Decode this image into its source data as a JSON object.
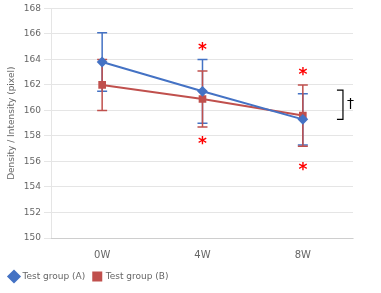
{
  "chart_data": {
    "type": "line",
    "categories": [
      "0W",
      "4W",
      "8W"
    ],
    "series": [
      {
        "name": "Test group (A)",
        "color": "#4472c4",
        "marker": "diamond",
        "values": [
          163.8,
          161.5,
          159.3
        ],
        "errors": [
          2.3,
          2.5,
          2.0
        ]
      },
      {
        "name": "Test group (B)",
        "color": "#c0504d",
        "marker": "square",
        "values": [
          162.0,
          160.9,
          159.6
        ],
        "errors": [
          2.0,
          2.2,
          2.4
        ]
      }
    ],
    "ylabel": "Density / Intensity (pixel)",
    "ylim": [
      150,
      168
    ],
    "yticks": [
      150,
      152,
      154,
      156,
      158,
      160,
      162,
      164,
      166,
      168
    ],
    "grid": true,
    "legend": "lower left",
    "annotations": [
      {
        "text": "*",
        "x": "4W",
        "y": 164.5,
        "color": "#ff0000"
      },
      {
        "text": "*",
        "x": "8W",
        "y": 162.5,
        "color": "#ff0000"
      },
      {
        "text": "*",
        "x": "4W",
        "y": 157.8,
        "color": "#ff0000"
      },
      {
        "text": "*",
        "x": "8W",
        "y": 155.8,
        "color": "#ff0000"
      }
    ],
    "brackets": [
      {
        "x": "8W",
        "y1": 159.3,
        "y2": 161.6,
        "text": "†"
      }
    ]
  }
}
